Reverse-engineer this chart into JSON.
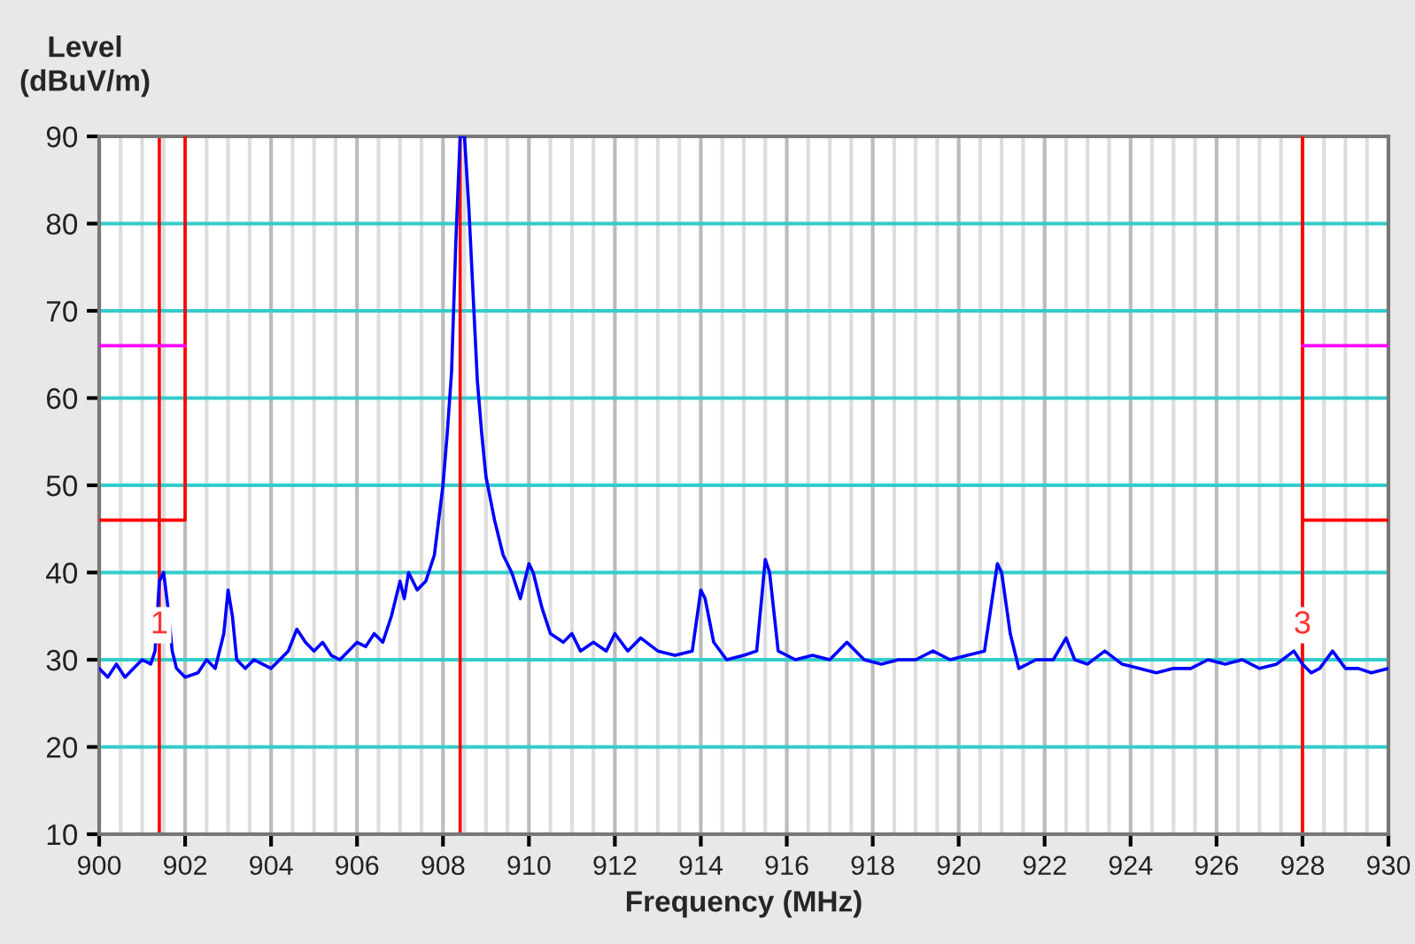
{
  "chart_data": {
    "type": "line",
    "xlabel": "Frequency (MHz)",
    "ylabel": "Level\n(dBuV/m)",
    "series": [
      {
        "color": "#0000ff",
        "x": [
          900.0,
          900.2,
          900.4,
          900.6,
          900.8,
          901.0,
          901.2,
          901.3,
          901.4,
          901.5,
          901.6,
          901.7,
          901.8,
          902.0,
          902.3,
          902.5,
          902.7,
          902.9,
          903.0,
          903.1,
          903.2,
          903.4,
          903.6,
          903.8,
          904.0,
          904.2,
          904.4,
          904.6,
          904.8,
          905.0,
          905.2,
          905.4,
          905.6,
          905.8,
          906.0,
          906.2,
          906.4,
          906.6,
          906.8,
          907.0,
          907.1,
          907.2,
          907.4,
          907.6,
          907.8,
          908.0,
          908.1,
          908.2,
          908.3,
          908.4,
          908.5,
          908.6,
          908.7,
          908.8,
          908.9,
          909.0,
          909.2,
          909.4,
          909.6,
          909.8,
          910.0,
          910.1,
          910.3,
          910.5,
          910.8,
          911.0,
          911.2,
          911.5,
          911.8,
          912.0,
          912.3,
          912.6,
          913.0,
          913.4,
          913.8,
          914.0,
          914.1,
          914.3,
          914.6,
          915.0,
          915.3,
          915.5,
          915.6,
          915.8,
          916.2,
          916.6,
          917.0,
          917.4,
          917.8,
          918.2,
          918.6,
          919.0,
          919.4,
          919.8,
          920.2,
          920.6,
          920.9,
          921.0,
          921.2,
          921.4,
          921.8,
          922.2,
          922.5,
          922.7,
          923.0,
          923.4,
          923.8,
          924.2,
          924.6,
          925.0,
          925.4,
          925.8,
          926.2,
          926.6,
          927.0,
          927.4,
          927.8,
          928.0,
          928.2,
          928.4,
          928.7,
          929.0,
          929.3,
          929.6,
          930.0
        ],
        "values": [
          29,
          28,
          29.5,
          28,
          29,
          30,
          29.5,
          31,
          39,
          40,
          36,
          31,
          29,
          28,
          28.5,
          30,
          29,
          33,
          38,
          35,
          30,
          29,
          30,
          29.5,
          29,
          30,
          31,
          33.5,
          32,
          31,
          32,
          30.5,
          30,
          31,
          32,
          31.5,
          33,
          32,
          35,
          39,
          37,
          40,
          38,
          39,
          42,
          50,
          56,
          63,
          78,
          90,
          90,
          82,
          72,
          62,
          56,
          51,
          46,
          42,
          40,
          37,
          41,
          40,
          36,
          33,
          32,
          33,
          31,
          32,
          31,
          33,
          31,
          32.5,
          31,
          30.5,
          31,
          38,
          37,
          32,
          30,
          30.5,
          31,
          41.5,
          40,
          31,
          30,
          30.5,
          30,
          32,
          30,
          29.5,
          30,
          30,
          31,
          30,
          30.5,
          31,
          41,
          40,
          33,
          29,
          30,
          30,
          32.5,
          30,
          29.5,
          31,
          29.5,
          29,
          28.5,
          29,
          29,
          30,
          29.5,
          30,
          29,
          29.5,
          31,
          29.5,
          28.5,
          29,
          31,
          29,
          29,
          28.5,
          29
        ]
      },
      {
        "color": "#ff0000",
        "x": [
          900,
          902,
          902
        ],
        "values": [
          46,
          46,
          90
        ]
      },
      {
        "color": "#ff0000",
        "x": [
          928,
          928,
          930
        ],
        "values": [
          90,
          46,
          46
        ]
      },
      {
        "color": "#ff00ff",
        "x": [
          900,
          902
        ],
        "values": [
          66,
          66
        ]
      },
      {
        "color": "#ff00ff",
        "x": [
          928,
          930
        ],
        "values": [
          66,
          66
        ]
      }
    ],
    "ref_lines": [
      {
        "axis": "x",
        "value": 901.4,
        "color": "#ff0000"
      },
      {
        "axis": "x",
        "value": 908.4,
        "color": "#ff0000"
      },
      {
        "axis": "x",
        "value": 928,
        "color": "#ff0000"
      }
    ],
    "annotations": [
      {
        "text": "1",
        "x": 901.4,
        "y": 30
      },
      {
        "text": "3",
        "x": 928,
        "y": 30
      }
    ],
    "xlim": [
      900,
      930
    ],
    "ylim": [
      10,
      90
    ],
    "xticks": [
      900,
      902,
      904,
      906,
      908,
      910,
      912,
      914,
      916,
      918,
      920,
      922,
      924,
      926,
      928,
      930
    ],
    "yticks": [
      10,
      20,
      30,
      40,
      50,
      60,
      70,
      80,
      90
    ],
    "grid": true,
    "line_style": "solid",
    "marker": "none",
    "legend": false
  }
}
